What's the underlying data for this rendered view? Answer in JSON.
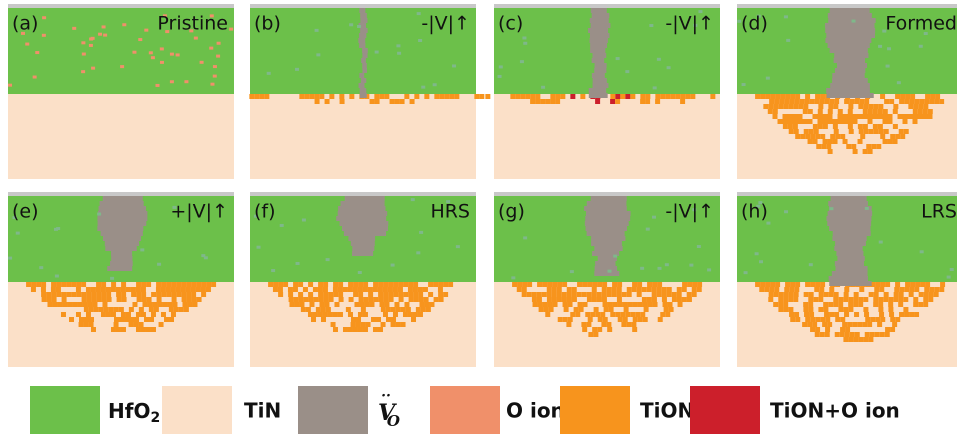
{
  "panels": [
    {
      "label": "(a)",
      "caption": "Pristine"
    },
    {
      "label": "(b)",
      "caption": "-|V|↑"
    },
    {
      "label": "(c)",
      "caption": "-|V|↑"
    },
    {
      "label": "(d)",
      "caption": "Formed"
    },
    {
      "label": "(e)",
      "caption": "+|V|↑"
    },
    {
      "label": "(f)",
      "caption": "HRS"
    },
    {
      "label": "(g)",
      "caption": "-|V|↑"
    },
    {
      "label": "(h)",
      "caption": "LRS"
    }
  ],
  "legend": [
    {
      "label": "HfO",
      "subscript": "2"
    },
    {
      "label": "TiN"
    },
    {
      "label": "V",
      "subscript": "O",
      "superscript": "··"
    },
    {
      "label": "O ion"
    },
    {
      "label": "TiON"
    },
    {
      "label": "TiON+O ion"
    }
  ]
}
